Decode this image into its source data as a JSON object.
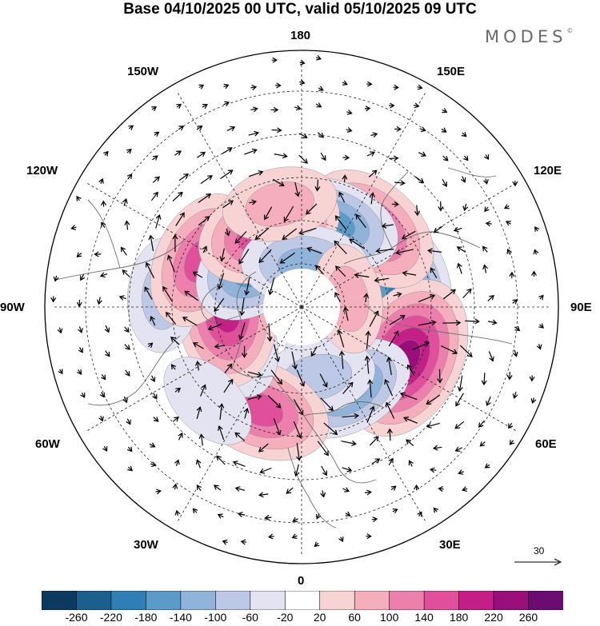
{
  "title": "Base 04/10/2025 00 UTC, valid 05/10/2025 09 UTC",
  "brand": "MODES",
  "brand_mark": "©",
  "longitude_labels": {
    "lon_180": "180",
    "lon_150e": "150E",
    "lon_120e": "120E",
    "lon_90e": "90E",
    "lon_60e": "60E",
    "lon_30e": "30E",
    "lon_0": "0",
    "lon_30w": "30W",
    "lon_60w": "60W",
    "lon_90w": "90W",
    "lon_120w": "120W",
    "lon_150w": "150W"
  },
  "reference_vector": {
    "label": "30"
  },
  "colorbar": {
    "tick_labels": [
      "-260",
      "-220",
      "-180",
      "-140",
      "-100",
      "-60",
      "-20",
      "20",
      "60",
      "100",
      "140",
      "180",
      "220",
      "260"
    ],
    "colors": [
      "#0b3a5e",
      "#1a5f8e",
      "#2f7fb7",
      "#5a9bc9",
      "#8fb3d9",
      "#bcc8e6",
      "#e3e3f1",
      "#ffffff",
      "#f8d3d3",
      "#f5aebb",
      "#ec7fac",
      "#e04f99",
      "#c41f86",
      "#9a0e7a",
      "#6a0c72"
    ]
  },
  "anomalies": [
    {
      "name": "low-90e",
      "lon": 95,
      "lat": 54,
      "v": -215
    },
    {
      "name": "low-60e-north",
      "lon": 45,
      "lat": 74,
      "v": -90
    },
    {
      "name": "high-60e",
      "lon": 64,
      "lat": 48,
      "v": 255
    },
    {
      "name": "high-135e",
      "lon": 138,
      "lat": 52,
      "v": 175
    },
    {
      "name": "low-157e",
      "lon": 159,
      "lat": 58,
      "v": -145
    },
    {
      "name": "low-30e",
      "lon": 30,
      "lat": 56,
      "v": -140
    },
    {
      "name": "low-10e",
      "lon": 12,
      "lat": 64,
      "v": -90
    },
    {
      "name": "high-20w",
      "lon": -22,
      "lat": 50,
      "v": 175
    },
    {
      "name": "low-65w",
      "lon": -68,
      "lat": 63,
      "v": -130
    },
    {
      "name": "high-85w",
      "lon": -86,
      "lat": 63,
      "v": 200
    },
    {
      "name": "low-95w",
      "lon": -95,
      "lat": 40,
      "v": -80
    },
    {
      "name": "high-115w",
      "lon": -115,
      "lat": 50,
      "v": 165
    },
    {
      "name": "low-138w",
      "lon": -138,
      "lat": 67,
      "v": -185
    },
    {
      "name": "high-160w",
      "lon": -157,
      "lat": 60,
      "v": 190
    },
    {
      "name": "low-180",
      "lon": 175,
      "lat": 75,
      "v": -125
    },
    {
      "name": "high-170w",
      "lon": -168,
      "lat": 52,
      "v": 80
    },
    {
      "name": "high-100e",
      "lon": 100,
      "lat": 73,
      "v": 60
    },
    {
      "name": "low-45w",
      "lon": -45,
      "lat": 42,
      "v": -45
    }
  ]
}
